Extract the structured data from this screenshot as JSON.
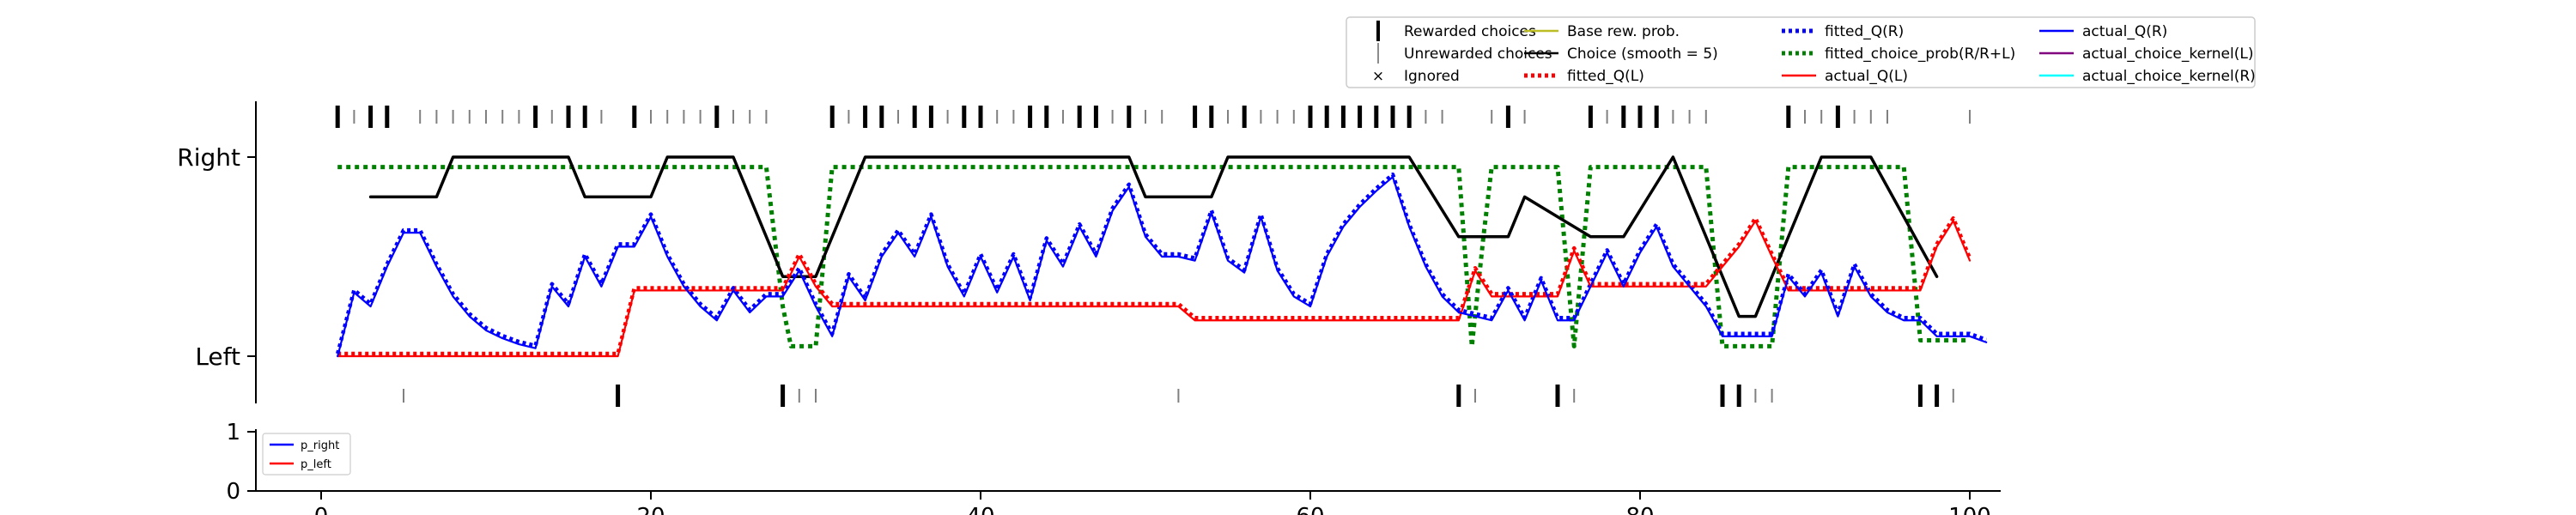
{
  "chart_data": [
    {
      "type": "line",
      "panel": "choice-history",
      "xlim": [
        0,
        100
      ],
      "ytick_labels": [
        "Left",
        "Right"
      ],
      "legend_placement": "top-right",
      "legend": [
        {
          "label": "Rewarded choices",
          "color": "#000000",
          "marker": "thick-tick"
        },
        {
          "label": "Unrewarded choices",
          "color": "#808080",
          "marker": "thin-tick"
        },
        {
          "label": "Ignored",
          "color": "#ff0000",
          "marker": "x"
        },
        {
          "label": "Base rew. prob.",
          "color": "#bcbd22",
          "marker": "line"
        },
        {
          "label": "Choice (smooth = 5)",
          "color": "#000000",
          "marker": "line"
        },
        {
          "label": "fitted_Q(L)",
          "color": "#ff0000",
          "marker": "dotted"
        },
        {
          "label": "fitted_Q(R)",
          "color": "#0000ff",
          "marker": "dotted"
        },
        {
          "label": "fitted_choice_prob(R/R+L)",
          "color": "#008000",
          "marker": "dotted"
        },
        {
          "label": "actual_Q(L)",
          "color": "#ff0000",
          "marker": "line"
        },
        {
          "label": "actual_Q(R)",
          "color": "#0000ff",
          "marker": "line"
        },
        {
          "label": "actual_choice_kernel(L)",
          "color": "#800080",
          "marker": "line"
        },
        {
          "label": "actual_choice_kernel(R)",
          "color": "#00ffff",
          "marker": "line"
        }
      ],
      "choices_right": {
        "rewarded": [
          1,
          3,
          4,
          13,
          15,
          16,
          19,
          24,
          31,
          33,
          34,
          36,
          37,
          39,
          40,
          43,
          44,
          46,
          47,
          49,
          53,
          54,
          56,
          60,
          61,
          62,
          63,
          64,
          65,
          66,
          72,
          77,
          79,
          80,
          81,
          89,
          92
        ],
        "unrewarded": [
          2,
          6,
          7,
          8,
          9,
          10,
          11,
          12,
          14,
          17,
          20,
          21,
          22,
          23,
          25,
          26,
          27,
          32,
          35,
          38,
          41,
          42,
          45,
          48,
          50,
          51,
          55,
          57,
          58,
          59,
          67,
          68,
          71,
          73,
          78,
          82,
          83,
          84,
          90,
          91,
          93,
          94,
          95,
          100
        ]
      },
      "choices_left": {
        "rewarded": [
          18,
          28,
          69,
          75,
          85,
          86,
          97,
          98
        ],
        "unrewarded": [
          5,
          29,
          30,
          52,
          70,
          76,
          87,
          88,
          99
        ]
      },
      "series": [
        {
          "name": "Choice (smooth = 5)",
          "color": "#000000",
          "style": "solid",
          "x": [
            3,
            7,
            8,
            15,
            16,
            20,
            21,
            25,
            28,
            30,
            33,
            49,
            50,
            54,
            55,
            66,
            69,
            72,
            73,
            77,
            79,
            82,
            86,
            87,
            91,
            94,
            98
          ],
          "y": [
            0.8,
            0.8,
            1.0,
            1.0,
            0.8,
            0.8,
            1.0,
            1.0,
            0.4,
            0.4,
            1.0,
            1.0,
            0.8,
            0.8,
            1.0,
            1.0,
            0.6,
            0.6,
            0.8,
            0.6,
            0.6,
            1.0,
            0.2,
            0.2,
            1.0,
            1.0,
            0.4
          ]
        },
        {
          "name": "fitted_choice_prob(R/R+L)",
          "color": "#008000",
          "style": "dotted",
          "x": [
            1,
            27,
            28,
            28.5,
            30,
            31,
            69,
            69.8,
            70.5,
            71,
            75,
            76,
            76.5,
            77,
            84,
            85,
            88,
            89,
            96,
            97,
            100
          ],
          "y": [
            0.95,
            0.95,
            0.25,
            0.05,
            0.05,
            0.95,
            0.95,
            0.05,
            0.6,
            0.95,
            0.95,
            0.05,
            0.5,
            0.95,
            0.95,
            0.05,
            0.05,
            0.95,
            0.95,
            0.08,
            0.08
          ]
        },
        {
          "name": "actual_Q(L)",
          "color": "#ff0000",
          "style": "solid",
          "x": [
            1,
            18,
            19,
            28,
            29,
            30,
            31,
            52,
            53,
            69,
            70,
            71,
            75,
            76,
            77,
            84,
            86,
            87,
            88,
            89,
            97,
            98,
            99,
            100
          ],
          "y": [
            0.0,
            0.0,
            0.33,
            0.33,
            0.5,
            0.35,
            0.25,
            0.25,
            0.18,
            0.18,
            0.43,
            0.3,
            0.3,
            0.53,
            0.35,
            0.35,
            0.55,
            0.68,
            0.5,
            0.33,
            0.33,
            0.55,
            0.68,
            0.48
          ]
        },
        {
          "name": "actual_Q(R)",
          "color": "#0000ff",
          "style": "solid",
          "x": [
            1,
            2,
            3,
            4,
            5,
            6,
            7,
            8,
            9,
            10,
            11,
            12,
            13,
            14,
            15,
            16,
            17,
            18,
            19,
            20,
            21,
            22,
            23,
            24,
            25,
            26,
            27,
            28,
            29,
            30,
            31,
            32,
            33,
            34,
            35,
            36,
            37,
            38,
            39,
            40,
            41,
            42,
            43,
            44,
            45,
            46,
            47,
            48,
            49,
            50,
            51,
            52,
            53,
            54,
            55,
            56,
            57,
            58,
            59,
            60,
            61,
            62,
            63,
            64,
            65,
            66,
            67,
            68,
            69,
            70,
            71,
            72,
            73,
            74,
            75,
            76,
            77,
            78,
            79,
            80,
            81,
            82,
            83,
            84,
            85,
            86,
            87,
            88,
            89,
            90,
            91,
            92,
            93,
            94,
            95,
            96,
            97,
            98,
            99,
            100,
            101
          ],
          "y": [
            0.0,
            0.32,
            0.25,
            0.45,
            0.62,
            0.62,
            0.45,
            0.3,
            0.2,
            0.13,
            0.09,
            0.06,
            0.04,
            0.35,
            0.25,
            0.5,
            0.35,
            0.55,
            0.55,
            0.7,
            0.5,
            0.35,
            0.25,
            0.18,
            0.33,
            0.22,
            0.3,
            0.3,
            0.43,
            0.25,
            0.1,
            0.4,
            0.28,
            0.5,
            0.62,
            0.5,
            0.7,
            0.45,
            0.3,
            0.5,
            0.32,
            0.5,
            0.28,
            0.58,
            0.45,
            0.65,
            0.5,
            0.73,
            0.85,
            0.6,
            0.5,
            0.5,
            0.48,
            0.72,
            0.48,
            0.42,
            0.7,
            0.43,
            0.3,
            0.25,
            0.5,
            0.65,
            0.75,
            0.83,
            0.9,
            0.65,
            0.45,
            0.3,
            0.22,
            0.2,
            0.18,
            0.33,
            0.18,
            0.38,
            0.18,
            0.18,
            0.35,
            0.52,
            0.35,
            0.52,
            0.65,
            0.45,
            0.35,
            0.25,
            0.1,
            0.1,
            0.1,
            0.1,
            0.4,
            0.3,
            0.42,
            0.2,
            0.45,
            0.3,
            0.22,
            0.18,
            0.18,
            0.1,
            0.1,
            0.1,
            0.07
          ]
        }
      ]
    },
    {
      "type": "line",
      "panel": "probability",
      "xlim": [
        0,
        100
      ],
      "ylim": [
        0,
        1
      ],
      "yticks": [
        0,
        1
      ],
      "xticks": [
        0,
        20,
        40,
        60,
        80,
        100
      ],
      "legend_placement": "top-left",
      "legend": [
        {
          "label": "p_right",
          "color": "#0000ff"
        },
        {
          "label": "p_left",
          "color": "#ff0000"
        }
      ]
    }
  ]
}
